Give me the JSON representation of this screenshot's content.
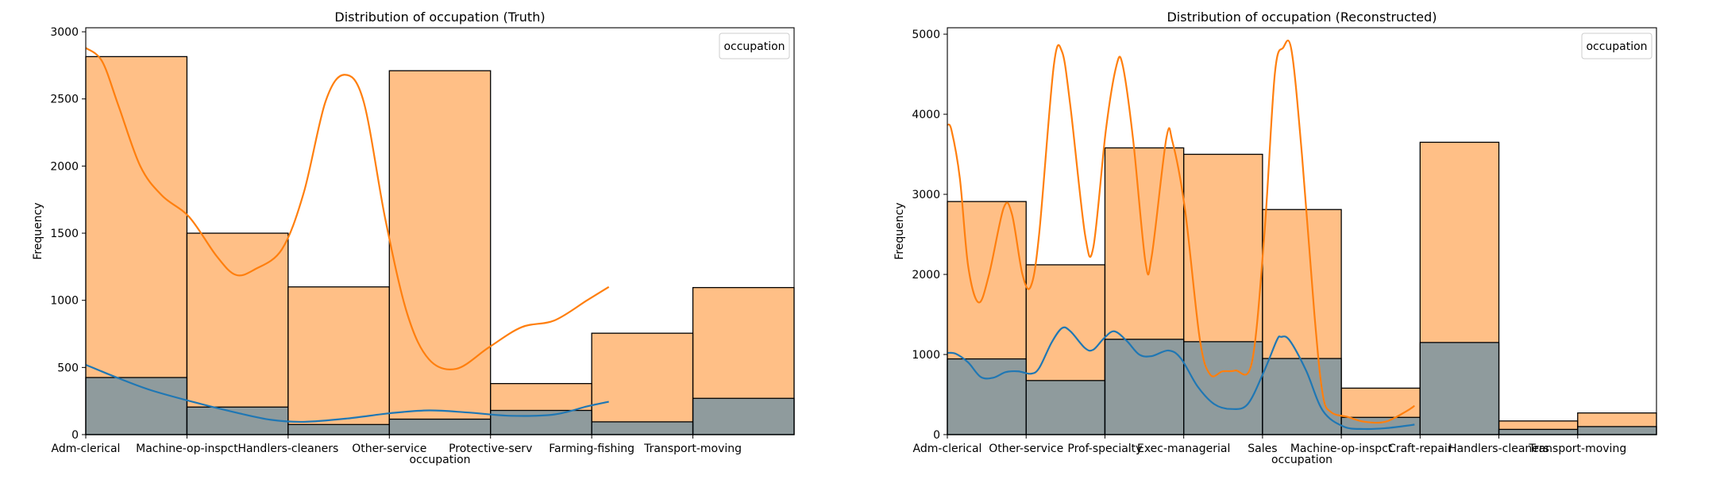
{
  "chart_data": [
    {
      "type": "histogram",
      "title": "Distribution of occupation (Truth)",
      "xlabel": "occupation",
      "ylabel": "Frequency",
      "legend_title": "occupation",
      "legend_placement": "top-right",
      "categories": [
        "Adm-clerical",
        "Machine-op-inspct",
        "Handlers-cleaners",
        "Other-service",
        "Protective-serv",
        "Farming-fishing",
        "Transport-moving"
      ],
      "ylim": [
        0,
        3030
      ],
      "yticks": [
        0,
        500,
        1000,
        1500,
        2000,
        2500,
        3000
      ],
      "series": [
        {
          "color": "#ff7f0e",
          "values": [
            2815,
            1500,
            1100,
            2710,
            380,
            755,
            1095
          ],
          "kde": [
            [
              0,
              2880
            ],
            [
              0.3,
              2780
            ],
            [
              0.6,
              2450
            ],
            [
              1.0,
              2000
            ],
            [
              1.4,
              1780
            ],
            [
              1.9,
              1620
            ],
            [
              2.4,
              1330
            ],
            [
              2.75,
              1190
            ],
            [
              3.1,
              1230
            ],
            [
              3.6,
              1380
            ],
            [
              4.0,
              1800
            ],
            [
              4.4,
              2480
            ],
            [
              4.75,
              2680
            ],
            [
              5.1,
              2480
            ],
            [
              5.5,
              1600
            ],
            [
              5.9,
              900
            ],
            [
              6.3,
              560
            ],
            [
              6.8,
              490
            ],
            [
              7.4,
              650
            ],
            [
              8.0,
              800
            ],
            [
              8.6,
              850
            ],
            [
              9.2,
              1000
            ],
            [
              9.6,
              1100
            ]
          ]
        },
        {
          "color": "#1f77b4",
          "values": [
            425,
            205,
            75,
            115,
            180,
            95,
            270
          ],
          "kde": [
            [
              0,
              520
            ],
            [
              0.6,
              420
            ],
            [
              1.2,
              330
            ],
            [
              2.0,
              240
            ],
            [
              2.8,
              160
            ],
            [
              3.4,
              110
            ],
            [
              4.0,
              95
            ],
            [
              4.8,
              120
            ],
            [
              5.6,
              160
            ],
            [
              6.3,
              180
            ],
            [
              7.0,
              165
            ],
            [
              7.8,
              140
            ],
            [
              8.6,
              150
            ],
            [
              9.2,
              210
            ],
            [
              9.6,
              245
            ]
          ]
        }
      ]
    },
    {
      "type": "histogram",
      "title": "Distribution of occupation (Reconstructed)",
      "xlabel": "occupation",
      "ylabel": "Frequency",
      "legend_title": "occupation",
      "legend_placement": "top-right",
      "categories": [
        "Adm-clerical",
        "Other-service",
        "Prof-specialty",
        "Exec-managerial",
        "Sales",
        "Machine-op-inspct",
        "Craft-repair",
        "Handlers-cleaners",
        "Transport-moving"
      ],
      "ylim": [
        0,
        5080
      ],
      "yticks": [
        0,
        1000,
        2000,
        3000,
        4000,
        5000
      ],
      "series": [
        {
          "color": "#ff7f0e",
          "values": [
            2910,
            2120,
            3580,
            3500,
            2810,
            580,
            3650,
            170,
            270
          ],
          "kde": [
            [
              0,
              3870
            ],
            [
              0.1,
              3800
            ],
            [
              0.3,
              3200
            ],
            [
              0.5,
              2100
            ],
            [
              0.75,
              1650
            ],
            [
              1.0,
              2000
            ],
            [
              1.35,
              2830
            ],
            [
              1.55,
              2750
            ],
            [
              1.8,
              2000
            ],
            [
              2.0,
              1850
            ],
            [
              2.2,
              2500
            ],
            [
              2.55,
              4600
            ],
            [
              2.75,
              4780
            ],
            [
              2.95,
              4100
            ],
            [
              3.3,
              2500
            ],
            [
              3.5,
              2340
            ],
            [
              3.8,
              3800
            ],
            [
              4.05,
              4600
            ],
            [
              4.2,
              4620
            ],
            [
              4.45,
              3700
            ],
            [
              4.75,
              2150
            ],
            [
              4.9,
              2230
            ],
            [
              5.25,
              3700
            ],
            [
              5.4,
              3650
            ],
            [
              5.7,
              2800
            ],
            [
              6.05,
              1200
            ],
            [
              6.3,
              750
            ],
            [
              6.6,
              790
            ],
            [
              6.9,
              800
            ],
            [
              7.3,
              900
            ],
            [
              7.6,
              2500
            ],
            [
              7.85,
              4500
            ],
            [
              8.05,
              4830
            ],
            [
              8.25,
              4800
            ],
            [
              8.5,
              3500
            ],
            [
              8.8,
              1500
            ],
            [
              9.0,
              500
            ],
            [
              9.2,
              280
            ],
            [
              9.6,
              220
            ],
            [
              10.0,
              160
            ],
            [
              10.5,
              160
            ],
            [
              11.0,
              290
            ],
            [
              11.2,
              360
            ]
          ]
        },
        {
          "color": "#1f77b4",
          "values": [
            945,
            675,
            1190,
            1160,
            950,
            215,
            1150,
            65,
            100
          ],
          "kde": [
            [
              0,
              1020
            ],
            [
              0.2,
              1010
            ],
            [
              0.5,
              900
            ],
            [
              0.8,
              720
            ],
            [
              1.1,
              710
            ],
            [
              1.4,
              780
            ],
            [
              1.7,
              790
            ],
            [
              2.0,
              760
            ],
            [
              2.2,
              830
            ],
            [
              2.5,
              1150
            ],
            [
              2.75,
              1330
            ],
            [
              2.95,
              1290
            ],
            [
              3.3,
              1080
            ],
            [
              3.5,
              1060
            ],
            [
              3.75,
              1200
            ],
            [
              4.0,
              1290
            ],
            [
              4.3,
              1170
            ],
            [
              4.6,
              1000
            ],
            [
              4.9,
              980
            ],
            [
              5.3,
              1050
            ],
            [
              5.6,
              950
            ],
            [
              6.0,
              600
            ],
            [
              6.4,
              380
            ],
            [
              6.8,
              320
            ],
            [
              7.2,
              380
            ],
            [
              7.6,
              800
            ],
            [
              7.9,
              1180
            ],
            [
              8.0,
              1220
            ],
            [
              8.2,
              1180
            ],
            [
              8.6,
              800
            ],
            [
              9.0,
              300
            ],
            [
              9.5,
              100
            ],
            [
              10.0,
              70
            ],
            [
              10.5,
              80
            ],
            [
              11.0,
              110
            ],
            [
              11.2,
              125
            ]
          ]
        }
      ]
    }
  ]
}
